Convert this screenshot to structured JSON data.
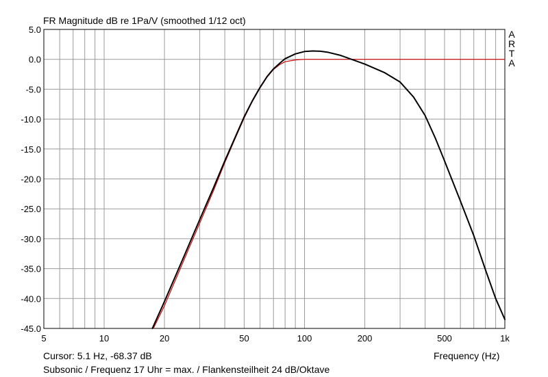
{
  "chart_data": {
    "type": "line",
    "title": "FR Magnitude dB re 1Pa/V (smoothed 1/12 oct)",
    "xlabel": "Frequency (Hz)",
    "ylabel": "",
    "x_scale": "log",
    "xlim": [
      5,
      1000
    ],
    "ylim": [
      -45,
      5
    ],
    "grid": true,
    "x_tick_values": [
      5,
      10,
      20,
      50,
      100,
      200,
      500,
      1000
    ],
    "x_tick_labels": [
      "5",
      "10",
      "20",
      "50",
      "100",
      "200",
      "500",
      "1k"
    ],
    "y_tick_values": [
      5,
      0,
      -5,
      -10,
      -15,
      -20,
      -25,
      -30,
      -35,
      -40,
      -45
    ],
    "y_tick_labels": [
      "5.0",
      "0.0",
      "-5.0",
      "-10.0",
      "-15.0",
      "-20.0",
      "-25.0",
      "-30.0",
      "-35.0",
      "-40.0",
      "-45.0"
    ],
    "watermark": "ARTA",
    "series": [
      {
        "color": "#000000",
        "x": [
          17.4,
          20,
          25,
          30,
          35,
          40,
          45,
          50,
          55,
          60,
          65,
          70,
          75,
          80,
          90,
          100,
          110,
          120,
          130,
          150,
          175,
          200,
          250,
          300,
          350,
          400,
          450,
          500,
          600,
          700,
          800,
          900,
          1000
        ],
        "y": [
          -45.0,
          -40.5,
          -33.0,
          -26.8,
          -21.6,
          -17.0,
          -13.1,
          -9.6,
          -6.9,
          -4.7,
          -2.9,
          -1.6,
          -0.7,
          0.1,
          0.9,
          1.3,
          1.4,
          1.35,
          1.2,
          0.7,
          -0.1,
          -0.8,
          -2.2,
          -3.8,
          -6.3,
          -9.4,
          -13.2,
          -17.0,
          -23.7,
          -29.5,
          -35.2,
          -40.0,
          -43.5
        ]
      },
      {
        "color": "#cc0000",
        "x": [
          17.6,
          20,
          25,
          30,
          35,
          40,
          45,
          50,
          55,
          60,
          65,
          70,
          75,
          80,
          90,
          100,
          110,
          120,
          150,
          200,
          300,
          500,
          1000
        ],
        "y": [
          -45.0,
          -41.2,
          -33.6,
          -27.4,
          -22.1,
          -17.3,
          -13.3,
          -9.8,
          -7.0,
          -4.8,
          -3.0,
          -1.7,
          -0.9,
          -0.4,
          -0.1,
          0.0,
          0.0,
          0.0,
          0.0,
          0.0,
          0.0,
          0.0,
          0.0
        ]
      }
    ]
  },
  "status": {
    "cursor": "Cursor: 5.1 Hz, -68.37 dB",
    "subsonic": "Subsonic / Frequenz 17 Uhr = max. / Flankensteilheit 24 dB/Oktave"
  }
}
